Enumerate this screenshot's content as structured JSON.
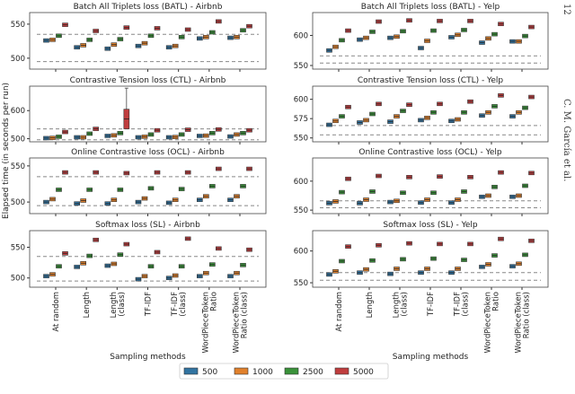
{
  "page": {
    "page_number": "12",
    "running_head": "C. M. García et al."
  },
  "chart_data": {
    "type": "box",
    "ylabel": "Elapsed time (in seconds per run)",
    "xlabel": "Sampling methods",
    "categories": [
      "At random",
      "Length",
      "Length\n(class)",
      "TF-IDF",
      "TF-IDF\n(class)",
      "WordPieceToken\nRatio",
      "WordPieceToken\nRatio (class)"
    ],
    "legend": {
      "placement": "bottom-center",
      "entries": [
        "500",
        "1000",
        "2500",
        "5000"
      ]
    },
    "colors": [
      "#3274a1",
      "#e1812c",
      "#3a923a",
      "#c03d3e"
    ],
    "panels": [
      {
        "title": "Batch All Triplets loss (BATL) - Airbnb",
        "ylim": [
          484,
          567
        ],
        "yticks": [
          500,
          550
        ],
        "ref_lines": [
          535,
          495
        ],
        "series": [
          {
            "name": "500",
            "medians": [
              526,
              516,
              514,
              518,
              516,
              529,
              530
            ]
          },
          {
            "name": "1000",
            "medians": [
              527,
              519,
              520,
              522,
              518,
              531,
              531
            ]
          },
          {
            "name": "2500",
            "medians": [
              533,
              527,
              528,
              533,
              531,
              538,
              541
            ]
          },
          {
            "name": "5000",
            "medians": [
              549,
              540,
              545,
              544,
              542,
              554,
              547
            ]
          }
        ]
      },
      {
        "title": "Contrastive Tension loss (CTL) - Airbnb",
        "ylim": [
          489,
          687
        ],
        "yticks": [
          500,
          600
        ],
        "ref_lines": [
          535,
          496
        ],
        "series": [
          {
            "name": "500",
            "medians": [
              502,
              505,
              510,
              505,
              505,
              510,
              508
            ]
          },
          {
            "name": "1000",
            "medians": [
              503,
              505,
              512,
              507,
              506,
              511,
              515
            ]
          },
          {
            "name": "2500",
            "medians": [
              507,
              518,
              520,
              515,
              515,
              520,
              520
            ]
          },
          {
            "name": "5000",
            "medians": [
              524,
              535,
              570,
              530,
              532,
              533,
              530
            ]
          }
        ],
        "large_box": {
          "category": "Length\n(class)",
          "series": "5000",
          "q1": 535,
          "q3": 605,
          "whisker_high": 680
        }
      },
      {
        "title": "Online Contrastive loss (OCL) - Airbnb",
        "ylim": [
          484,
          561
        ],
        "yticks": [
          500,
          550
        ],
        "ref_lines": [
          535,
          495
        ],
        "series": [
          {
            "name": "500",
            "medians": [
              500,
              498,
              498,
              500,
              499,
              503,
              503
            ]
          },
          {
            "name": "1000",
            "medians": [
              504,
              502,
              503,
              505,
              503,
              508,
              508
            ]
          },
          {
            "name": "2500",
            "medians": [
              517,
              517,
              517,
              519,
              518,
              522,
              522
            ]
          },
          {
            "name": "5000",
            "medians": [
              541,
              541,
              540,
              541,
              541,
              546,
              546
            ]
          }
        ]
      },
      {
        "title": "Softmax loss (SL) - Airbnb",
        "ylim": [
          485,
          577
        ],
        "yticks": [
          500,
          550
        ],
        "ref_lines": [
          535,
          495
        ],
        "series": [
          {
            "name": "500",
            "medians": [
              503,
              518,
              520,
              498,
              500,
              503,
              503
            ]
          },
          {
            "name": "1000",
            "medians": [
              506,
              524,
              523,
              503,
              504,
              508,
              508
            ]
          },
          {
            "name": "2500",
            "medians": [
              519,
              536,
              538,
              519,
              519,
              522,
              521
            ]
          },
          {
            "name": "5000",
            "medians": [
              540,
              562,
              555,
              542,
              564,
              548,
              546
            ]
          }
        ]
      },
      {
        "title": "Batch All Triplets loss (BATL) - Yelp",
        "ylim": [
          544,
          638
        ],
        "yticks": [
          550,
          600
        ],
        "ref_lines": [
          566,
          554
        ],
        "series": [
          {
            "name": "500",
            "medians": [
              575,
              593,
              596,
              579,
              597,
              588,
              590
            ]
          },
          {
            "name": "1000",
            "medians": [
              581,
              596,
              598,
              591,
              601,
              595,
              590
            ]
          },
          {
            "name": "2500",
            "medians": [
              592,
              606,
              607,
              608,
              609,
              602,
              599
            ]
          },
          {
            "name": "5000",
            "medians": [
              608,
              623,
              625,
              624,
              624,
              619,
              614
            ]
          }
        ]
      },
      {
        "title": "Contrastive Tension loss (CTL) - Yelp",
        "ylim": [
          545,
          617
        ],
        "yticks": [
          550,
          575,
          600
        ],
        "ref_lines": [
          566,
          554
        ],
        "series": [
          {
            "name": "500",
            "medians": [
              567,
              570,
              571,
              573,
              572,
              579,
              578
            ]
          },
          {
            "name": "1000",
            "medians": [
              572,
              573,
              578,
              576,
              574,
              583,
              583
            ]
          },
          {
            "name": "2500",
            "medians": [
              578,
              581,
              585,
              583,
              583,
              591,
              589
            ]
          },
          {
            "name": "5000",
            "medians": [
              590,
              594,
              593,
              594,
              597,
              605,
              603
            ]
          }
        ]
      },
      {
        "title": "Online Contrastive loss (OCL) - Yelp",
        "ylim": [
          544,
          640
        ],
        "yticks": [
          550,
          600
        ],
        "ref_lines": [
          566,
          554
        ],
        "series": [
          {
            "name": "500",
            "medians": [
              562,
              562,
              564,
              563,
              563,
              573,
              573
            ]
          },
          {
            "name": "1000",
            "medians": [
              565,
              568,
              566,
              568,
              568,
              575,
              575
            ]
          },
          {
            "name": "2500",
            "medians": [
              581,
              582,
              580,
              580,
              582,
              590,
              592
            ]
          },
          {
            "name": "5000",
            "medians": [
              604,
              609,
              607,
              608,
              607,
              615,
              614
            ]
          }
        ]
      },
      {
        "title": "Softmax loss (SL) - Yelp",
        "ylim": [
          543,
          632
        ],
        "yticks": [
          550,
          600
        ],
        "ref_lines": [
          566,
          554
        ],
        "series": [
          {
            "name": "500",
            "medians": [
              563,
              566,
              564,
              566,
              566,
              575,
              576
            ]
          },
          {
            "name": "1000",
            "medians": [
              568,
              571,
              572,
              572,
              572,
              579,
              580
            ]
          },
          {
            "name": "2500",
            "medians": [
              584,
              585,
              587,
              588,
              586,
              593,
              594
            ]
          },
          {
            "name": "5000",
            "medians": [
              607,
              609,
              612,
              611,
              611,
              619,
              616
            ]
          }
        ]
      }
    ]
  }
}
